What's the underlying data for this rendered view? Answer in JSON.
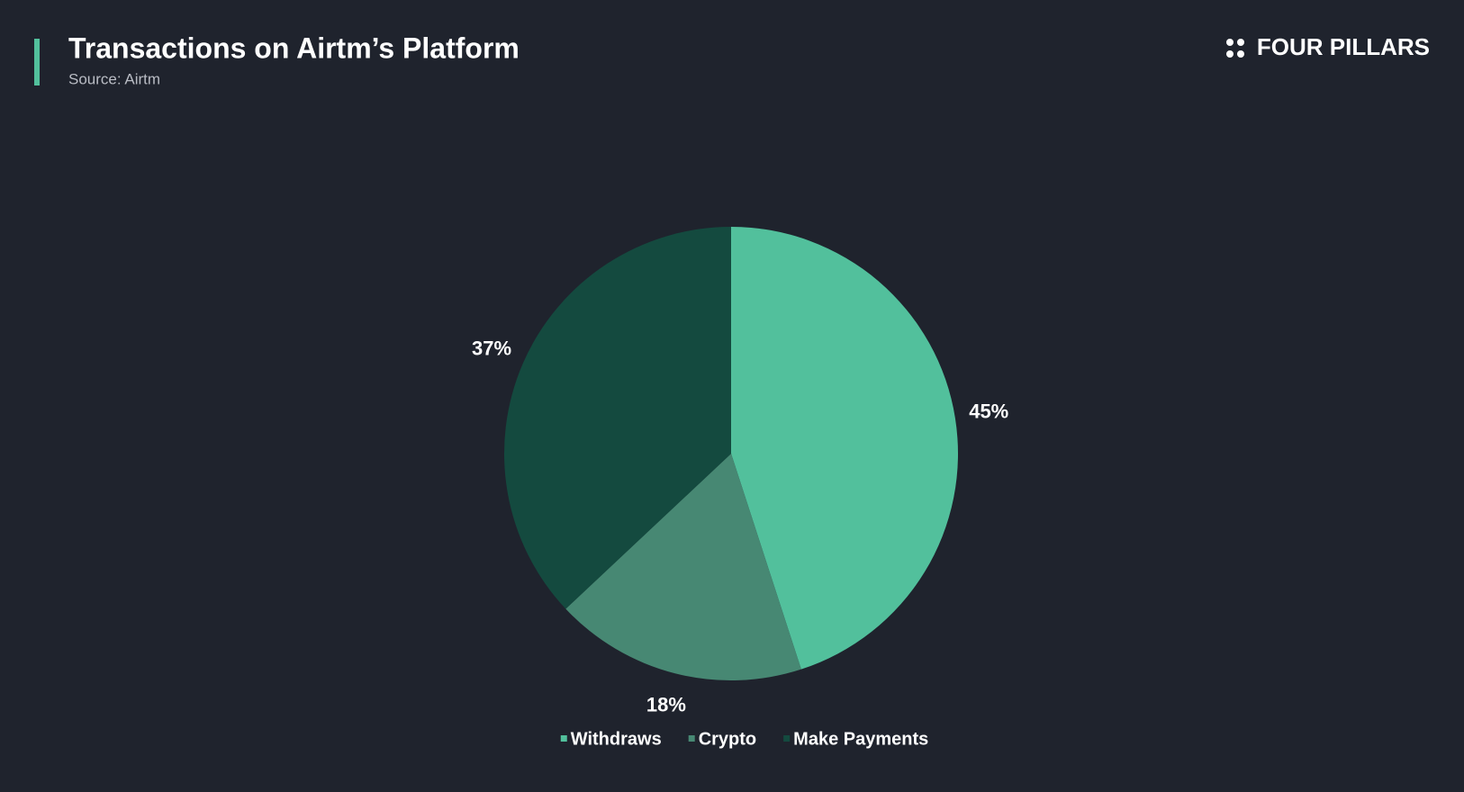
{
  "chart_data": {
    "type": "pie",
    "title": "Transactions on Airtm’s Platform",
    "subtitle": "Source: Airtm",
    "brand": "FOUR PILLARS",
    "categories": [
      "Withdraws",
      "Crypto",
      "Make Payments"
    ],
    "values": [
      45,
      18,
      37
    ],
    "value_labels": [
      "45%",
      "18%",
      "37%"
    ],
    "colors": [
      "#52c09c",
      "#478873",
      "#144a3f"
    ],
    "legend": "bottom"
  }
}
